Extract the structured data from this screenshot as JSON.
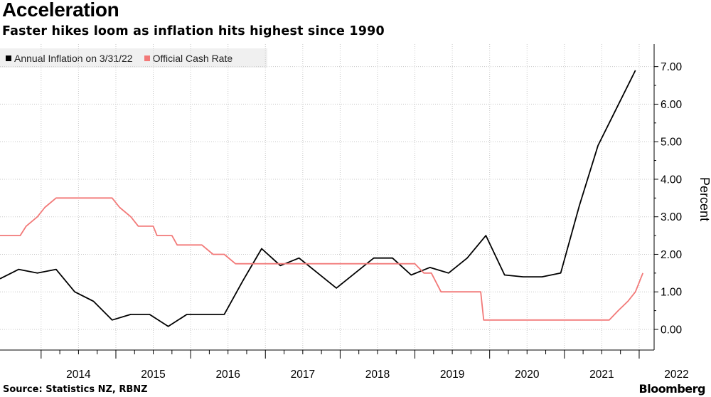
{
  "title": "Acceleration",
  "subtitle": "Faster hikes loom as inflation hits highest since 1990",
  "source": "Source: Statistics NZ, RBNZ",
  "logo": "Bloomberg",
  "chart_data": {
    "type": "line",
    "ylabel": "Percent",
    "ylim": [
      -0.55,
      7.6
    ],
    "xlim": [
      2013.45,
      2022.2
    ],
    "yticks": [
      "0.00",
      "1.00",
      "2.00",
      "3.00",
      "4.00",
      "5.00",
      "6.00",
      "7.00"
    ],
    "xticks": [
      "2014",
      "2015",
      "2016",
      "2017",
      "2018",
      "2019",
      "2020",
      "2021",
      "2022"
    ],
    "grid": true,
    "legend_position": "top-left",
    "series": [
      {
        "name": "Annual Inflation on 3/31/22",
        "color": "#000000",
        "points": [
          [
            2013.45,
            1.35
          ],
          [
            2013.7,
            1.6
          ],
          [
            2013.95,
            1.5
          ],
          [
            2014.2,
            1.6
          ],
          [
            2014.45,
            1.0
          ],
          [
            2014.7,
            0.75
          ],
          [
            2014.95,
            0.25
          ],
          [
            2015.2,
            0.4
          ],
          [
            2015.45,
            0.4
          ],
          [
            2015.7,
            0.08
          ],
          [
            2015.95,
            0.4
          ],
          [
            2016.2,
            0.4
          ],
          [
            2016.45,
            0.4
          ],
          [
            2016.7,
            1.3
          ],
          [
            2016.95,
            2.15
          ],
          [
            2017.2,
            1.7
          ],
          [
            2017.45,
            1.9
          ],
          [
            2017.7,
            1.5
          ],
          [
            2017.95,
            1.1
          ],
          [
            2018.2,
            1.5
          ],
          [
            2018.45,
            1.9
          ],
          [
            2018.7,
            1.9
          ],
          [
            2018.95,
            1.45
          ],
          [
            2019.2,
            1.65
          ],
          [
            2019.45,
            1.5
          ],
          [
            2019.7,
            1.9
          ],
          [
            2019.95,
            2.5
          ],
          [
            2020.2,
            1.45
          ],
          [
            2020.45,
            1.4
          ],
          [
            2020.7,
            1.4
          ],
          [
            2020.95,
            1.5
          ],
          [
            2021.2,
            3.3
          ],
          [
            2021.45,
            4.9
          ],
          [
            2021.7,
            5.9
          ],
          [
            2021.95,
            6.9
          ]
        ]
      },
      {
        "name": "Official Cash Rate",
        "color": "#f27978",
        "points": [
          [
            2013.45,
            2.5
          ],
          [
            2013.72,
            2.5
          ],
          [
            2013.8,
            2.75
          ],
          [
            2013.95,
            3.0
          ],
          [
            2014.05,
            3.25
          ],
          [
            2014.2,
            3.5
          ],
          [
            2014.95,
            3.5
          ],
          [
            2015.05,
            3.25
          ],
          [
            2015.2,
            3.0
          ],
          [
            2015.3,
            2.75
          ],
          [
            2015.5,
            2.75
          ],
          [
            2015.55,
            2.5
          ],
          [
            2015.75,
            2.5
          ],
          [
            2015.82,
            2.25
          ],
          [
            2016.15,
            2.25
          ],
          [
            2016.3,
            2.0
          ],
          [
            2016.45,
            2.0
          ],
          [
            2016.6,
            1.75
          ],
          [
            2019.0,
            1.75
          ],
          [
            2019.12,
            1.5
          ],
          [
            2019.22,
            1.5
          ],
          [
            2019.35,
            1.0
          ],
          [
            2019.88,
            1.0
          ],
          [
            2019.92,
            0.25
          ],
          [
            2021.6,
            0.25
          ],
          [
            2021.72,
            0.5
          ],
          [
            2021.85,
            0.75
          ],
          [
            2021.95,
            1.0
          ],
          [
            2022.05,
            1.5
          ]
        ]
      }
    ]
  }
}
